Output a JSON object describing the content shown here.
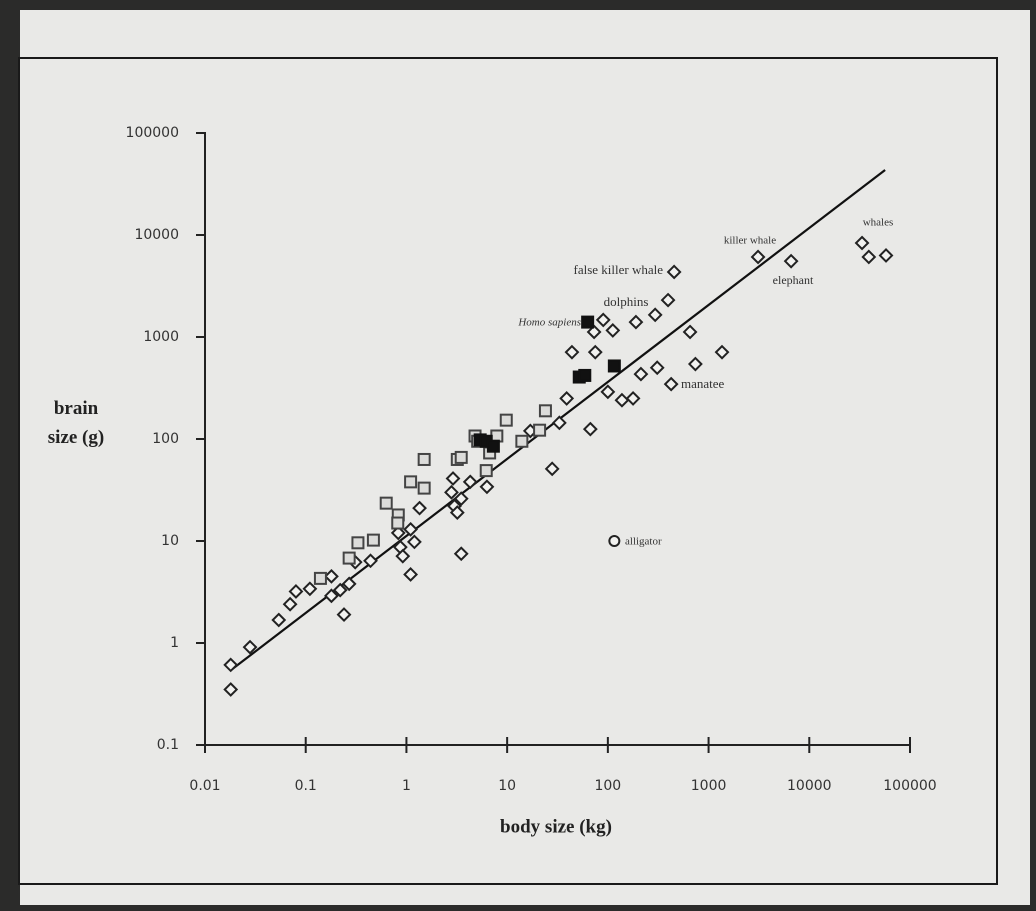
{
  "chart_data": {
    "type": "scatter",
    "xlabel": "body size (kg)",
    "ylabel": "brain size (g)",
    "xscale": "log",
    "yscale": "log",
    "xlim": [
      0.01,
      100000
    ],
    "ylim": [
      0.1,
      100000
    ],
    "xticks": [
      0.01,
      0.1,
      1,
      10,
      100,
      1000,
      10000,
      100000
    ],
    "yticks": [
      0.1,
      1,
      10,
      100,
      1000,
      10000,
      100000
    ],
    "series": [
      {
        "marker": "diamond",
        "color": "#222222",
        "filled": false,
        "x": [
          0.018,
          0.018,
          0.028,
          0.054,
          0.07,
          0.08,
          0.11,
          0.18,
          0.18,
          0.22,
          0.24,
          0.27,
          0.31,
          0.44,
          0.83,
          0.87,
          0.92,
          1.1,
          1.2,
          1.1,
          1.35,
          2.8,
          3.0,
          3.2,
          3.5,
          3.5,
          4.3,
          6.3,
          2.9,
          17,
          33,
          28,
          39,
          44,
          67,
          73,
          75,
          90,
          112,
          100,
          138,
          178,
          190,
          213,
          295,
          309,
          396,
          425,
          455,
          655,
          740,
          1360,
          3100,
          6600,
          33400,
          39000,
          57800
        ],
        "values": [
          0.35,
          0.61,
          0.91,
          1.68,
          2.4,
          3.2,
          3.4,
          4.5,
          2.9,
          3.3,
          1.9,
          3.8,
          6.2,
          6.4,
          12,
          8.7,
          7.1,
          13,
          9.8,
          4.7,
          21,
          30,
          22,
          19,
          7.5,
          26,
          38,
          34,
          41,
          120,
          144,
          51,
          250,
          710,
          125,
          1120,
          710,
          1470,
          1160,
          290,
          240,
          250,
          1400,
          433,
          1650,
          500,
          2300,
          345,
          4340,
          1120,
          543,
          710,
          6090,
          5540,
          8350,
          6090,
          6300
        ]
      },
      {
        "marker": "square",
        "color": "#444444",
        "filled": false,
        "x": [
          0.14,
          0.27,
          0.33,
          0.47,
          0.63,
          0.83,
          0.82,
          1.1,
          1.5,
          1.5,
          3.2,
          3.5,
          4.8,
          5.1,
          6.2,
          6.7,
          7.9,
          9.8,
          14,
          21,
          24
        ],
        "values": [
          4.3,
          6.8,
          9.6,
          10.2,
          23.5,
          18,
          15,
          38,
          33,
          63,
          63,
          66,
          107,
          95,
          49,
          73,
          107,
          153,
          95,
          122,
          189
        ]
      },
      {
        "marker": "square",
        "color": "#111111",
        "filled": true,
        "x": [
          5.4,
          6.2,
          7.3,
          52,
          59,
          63,
          116
        ],
        "values": [
          98,
          95,
          85,
          405,
          420,
          1400,
          520
        ]
      },
      {
        "marker": "circle",
        "color": "#222222",
        "filled": false,
        "x": [
          116
        ],
        "values": [
          10
        ]
      }
    ],
    "fit_line": {
      "x": [
        0.018,
        56600
      ],
      "y": [
        0.54,
        43400
      ],
      "color": "#111111"
    },
    "annotations": [
      "false killer whale",
      "dolphins",
      "Homo sapiens",
      "killer whale",
      "elephant",
      "whales",
      "manatee",
      "alligator"
    ]
  }
}
